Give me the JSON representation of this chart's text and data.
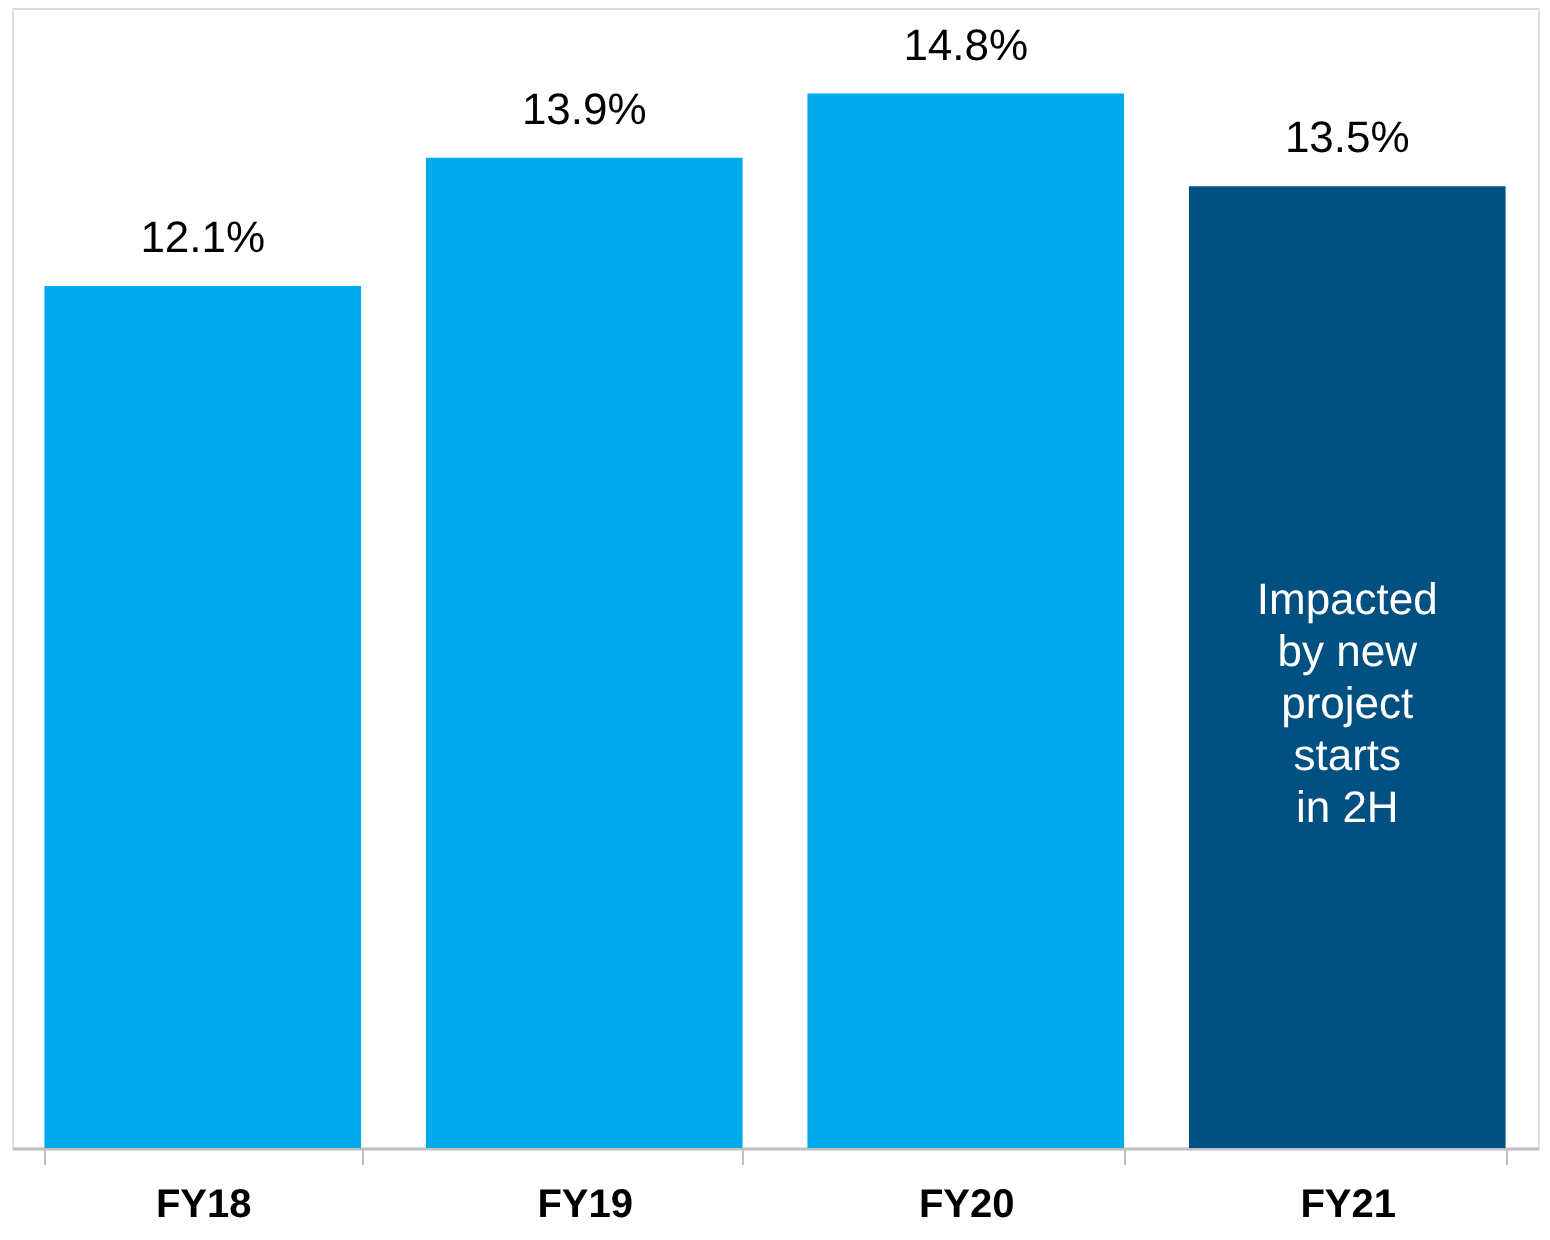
{
  "chart_data": {
    "type": "bar",
    "categories": [
      "FY18",
      "FY19",
      "FY20",
      "FY21"
    ],
    "values": [
      12.1,
      13.9,
      14.8,
      13.5
    ],
    "colors": [
      "#00aaeb",
      "#00aaeb",
      "#00aaeb",
      "#005082"
    ],
    "value_labels": [
      "12.1%",
      "13.9%",
      "14.8%",
      "13.5%"
    ],
    "ylim": [
      0,
      16
    ],
    "tick_labels": "x",
    "grid": false,
    "annotations": [
      "Impacted by new project starts in 2H"
    ]
  }
}
